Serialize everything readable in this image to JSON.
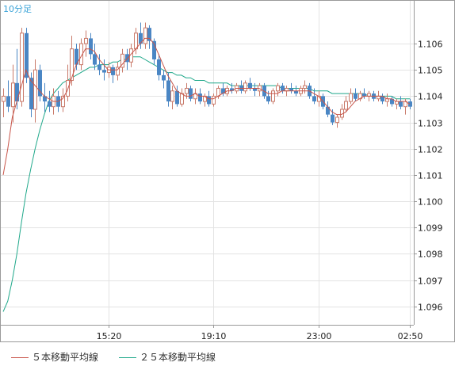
{
  "chart_data": {
    "type": "candlestick",
    "timeframe_label": "10分足",
    "y_ticks": [
      "1.106",
      "1.105",
      "1.104",
      "1.103",
      "1.102",
      "1.101",
      "1.100",
      "1.099",
      "1.098",
      "1.097",
      "1.096"
    ],
    "x_ticks": [
      "15:20",
      "19:10",
      "23:00",
      "02:50"
    ],
    "ylim": [
      1.0953,
      1.1076
    ],
    "up_color": "#c97a6a",
    "down_color": "#4a86c4",
    "series": [
      {
        "name": "５本移動平均線",
        "color": "#c8554a"
      },
      {
        "name": "２５本移動平均線",
        "color": "#1fa88a"
      }
    ],
    "candles": [
      [
        1.1038,
        1.1043,
        1.1032,
        1.104
      ],
      [
        1.104,
        1.1046,
        1.1034,
        1.1036
      ],
      [
        1.1036,
        1.1052,
        1.103,
        1.1045
      ],
      [
        1.1045,
        1.1058,
        1.1035,
        1.1038
      ],
      [
        1.1038,
        1.1066,
        1.1036,
        1.1064
      ],
      [
        1.1064,
        1.1066,
        1.1045,
        1.1047
      ],
      [
        1.1047,
        1.1049,
        1.1032,
        1.1035
      ],
      [
        1.1035,
        1.1054,
        1.103,
        1.105
      ],
      [
        1.105,
        1.1052,
        1.1038,
        1.104
      ],
      [
        1.104,
        1.1045,
        1.1034,
        1.1038
      ],
      [
        1.1038,
        1.1042,
        1.1034,
        1.1036
      ],
      [
        1.1036,
        1.1043,
        1.1033,
        1.104
      ],
      [
        1.104,
        1.1042,
        1.1034,
        1.1036
      ],
      [
        1.1036,
        1.1043,
        1.1034,
        1.104
      ],
      [
        1.104,
        1.1052,
        1.1038,
        1.1046
      ],
      [
        1.1046,
        1.1063,
        1.1044,
        1.1058
      ],
      [
        1.1058,
        1.106,
        1.105,
        1.1052
      ],
      [
        1.1052,
        1.1062,
        1.105,
        1.106
      ],
      [
        1.106,
        1.1065,
        1.1055,
        1.1062
      ],
      [
        1.1062,
        1.1064,
        1.1054,
        1.1056
      ],
      [
        1.1056,
        1.106,
        1.105,
        1.1052
      ],
      [
        1.1052,
        1.1056,
        1.1048,
        1.105
      ],
      [
        1.105,
        1.1054,
        1.1046,
        1.1049
      ],
      [
        1.1049,
        1.1053,
        1.1047,
        1.1051
      ],
      [
        1.1051,
        1.1052,
        1.1045,
        1.1048
      ],
      [
        1.1048,
        1.1053,
        1.1046,
        1.1051
      ],
      [
        1.1051,
        1.1058,
        1.1049,
        1.1056
      ],
      [
        1.1056,
        1.1058,
        1.105,
        1.1053
      ],
      [
        1.1053,
        1.106,
        1.1051,
        1.1058
      ],
      [
        1.1058,
        1.1066,
        1.1056,
        1.1064
      ],
      [
        1.1064,
        1.1068,
        1.1058,
        1.106
      ],
      [
        1.106,
        1.1068,
        1.1058,
        1.1066
      ],
      [
        1.1066,
        1.1067,
        1.1058,
        1.1061
      ],
      [
        1.1061,
        1.1062,
        1.1052,
        1.1054
      ],
      [
        1.1054,
        1.1056,
        1.1046,
        1.1048
      ],
      [
        1.1048,
        1.105,
        1.1043,
        1.1046
      ],
      [
        1.1046,
        1.1049,
        1.1036,
        1.1038
      ],
      [
        1.1038,
        1.1044,
        1.1035,
        1.1042
      ],
      [
        1.1042,
        1.1044,
        1.1036,
        1.1037
      ],
      [
        1.1037,
        1.1043,
        1.1036,
        1.1041
      ],
      [
        1.1041,
        1.1045,
        1.1039,
        1.1043
      ],
      [
        1.1043,
        1.1044,
        1.1038,
        1.1039
      ],
      [
        1.1039,
        1.1043,
        1.1037,
        1.1041
      ],
      [
        1.1041,
        1.1043,
        1.1037,
        1.1038
      ],
      [
        1.1038,
        1.1041,
        1.1036,
        1.104
      ],
      [
        1.104,
        1.1042,
        1.1036,
        1.1037
      ],
      [
        1.1037,
        1.1041,
        1.1036,
        1.104
      ],
      [
        1.104,
        1.1044,
        1.1039,
        1.1043
      ],
      [
        1.1043,
        1.1045,
        1.104,
        1.1041
      ],
      [
        1.1041,
        1.1044,
        1.104,
        1.1043
      ],
      [
        1.1043,
        1.1045,
        1.1041,
        1.1042
      ],
      [
        1.1042,
        1.1045,
        1.1041,
        1.1044
      ],
      [
        1.1044,
        1.1046,
        1.1041,
        1.1042
      ],
      [
        1.1042,
        1.1046,
        1.1041,
        1.1045
      ],
      [
        1.1045,
        1.1047,
        1.1042,
        1.1043
      ],
      [
        1.1043,
        1.1045,
        1.104,
        1.1042
      ],
      [
        1.1042,
        1.1045,
        1.104,
        1.1044
      ],
      [
        1.1044,
        1.1045,
        1.1039,
        1.104
      ],
      [
        1.104,
        1.1042,
        1.1037,
        1.1038
      ],
      [
        1.1038,
        1.1043,
        1.1037,
        1.1042
      ],
      [
        1.1042,
        1.1045,
        1.104,
        1.1044
      ],
      [
        1.1044,
        1.1045,
        1.1041,
        1.1042
      ],
      [
        1.1042,
        1.1044,
        1.104,
        1.1043
      ],
      [
        1.1043,
        1.1045,
        1.1041,
        1.1042
      ],
      [
        1.1042,
        1.1044,
        1.104,
        1.1041
      ],
      [
        1.1041,
        1.1044,
        1.104,
        1.1043
      ],
      [
        1.1043,
        1.1046,
        1.1041,
        1.1044
      ],
      [
        1.1044,
        1.1045,
        1.1039,
        1.104
      ],
      [
        1.104,
        1.1043,
        1.1037,
        1.1038
      ],
      [
        1.1038,
        1.1042,
        1.1036,
        1.104
      ],
      [
        1.104,
        1.1041,
        1.1035,
        1.1036
      ],
      [
        1.1036,
        1.1038,
        1.1032,
        1.1033
      ],
      [
        1.1033,
        1.1035,
        1.1029,
        1.103
      ],
      [
        1.103,
        1.1033,
        1.1028,
        1.1032
      ],
      [
        1.1032,
        1.1037,
        1.1031,
        1.1035
      ],
      [
        1.1035,
        1.104,
        1.1034,
        1.1038
      ],
      [
        1.1038,
        1.1043,
        1.1037,
        1.1041
      ],
      [
        1.1041,
        1.1043,
        1.1038,
        1.1039
      ],
      [
        1.1039,
        1.1042,
        1.1038,
        1.1041
      ],
      [
        1.1041,
        1.1043,
        1.1039,
        1.104
      ],
      [
        1.104,
        1.1042,
        1.1038,
        1.1041
      ],
      [
        1.1041,
        1.1042,
        1.1038,
        1.1039
      ],
      [
        1.1039,
        1.1042,
        1.1038,
        1.104
      ],
      [
        1.104,
        1.1041,
        1.1037,
        1.1038
      ],
      [
        1.1038,
        1.1041,
        1.1036,
        1.1039
      ],
      [
        1.1039,
        1.104,
        1.1036,
        1.1037
      ],
      [
        1.1037,
        1.1039,
        1.1035,
        1.1038
      ],
      [
        1.1038,
        1.104,
        1.1035,
        1.1036
      ],
      [
        1.1036,
        1.1039,
        1.1033,
        1.1038
      ],
      [
        1.1038,
        1.1039,
        1.1035,
        1.1036
      ]
    ],
    "ma5": [
      1.101,
      1.102,
      1.1032,
      1.1038,
      1.1044,
      1.105,
      1.1046,
      1.1044,
      1.1042,
      1.104,
      1.1039,
      1.1038,
      1.1038,
      1.1039,
      1.1042,
      1.1047,
      1.1052,
      1.1055,
      1.1058,
      1.1058,
      1.1057,
      1.1054,
      1.1052,
      1.105,
      1.105,
      1.105,
      1.1052,
      1.1054,
      1.1056,
      1.1058,
      1.106,
      1.1062,
      1.1062,
      1.106,
      1.1056,
      1.1052,
      1.1048,
      1.1045,
      1.1042,
      1.1041,
      1.104,
      1.104,
      1.1041,
      1.104,
      1.104,
      1.1039,
      1.1039,
      1.104,
      1.1041,
      1.1042,
      1.1042,
      1.1043,
      1.1043,
      1.1043,
      1.1043,
      1.1043,
      1.1043,
      1.1042,
      1.1041,
      1.1041,
      1.1041,
      1.1042,
      1.1042,
      1.1042,
      1.1042,
      1.1042,
      1.1042,
      1.1042,
      1.1041,
      1.104,
      1.1038,
      1.1036,
      1.1034,
      1.1033,
      1.1033,
      1.1034,
      1.1036,
      1.1038,
      1.1039,
      1.104,
      1.104,
      1.104,
      1.104,
      1.104,
      1.1039,
      1.1039,
      1.1038,
      1.1038,
      1.1038,
      1.1037
    ],
    "ma25": [
      1.0958,
      1.0962,
      1.097,
      1.098,
      1.0992,
      1.1003,
      1.1012,
      1.102,
      1.1027,
      1.1033,
      1.1038,
      1.1041,
      1.1043,
      1.1045,
      1.1046,
      1.1047,
      1.1048,
      1.1049,
      1.105,
      1.1051,
      1.1051,
      1.1052,
      1.1052,
      1.1052,
      1.1053,
      1.1053,
      1.1054,
      1.1054,
      1.1055,
      1.1055,
      1.1055,
      1.1054,
      1.1053,
      1.1052,
      1.1051,
      1.105,
      1.1049,
      1.1049,
      1.1048,
      1.1048,
      1.1047,
      1.1047,
      1.1046,
      1.1046,
      1.1046,
      1.1045,
      1.1045,
      1.1045,
      1.1045,
      1.1045,
      1.1044,
      1.1044,
      1.1044,
      1.1044,
      1.1044,
      1.1044,
      1.1044,
      1.1044,
      1.1044,
      1.1044,
      1.1044,
      1.1043,
      1.1043,
      1.1043,
      1.1043,
      1.1043,
      1.1043,
      1.1043,
      1.1042,
      1.1042,
      1.1042,
      1.1042,
      1.1041,
      1.1041,
      1.1041,
      1.1041,
      1.1041,
      1.1041,
      1.1041,
      1.1041,
      1.104,
      1.104,
      1.104,
      1.104,
      1.104,
      1.104,
      1.1039,
      1.1039,
      1.1039,
      1.1039
    ]
  }
}
